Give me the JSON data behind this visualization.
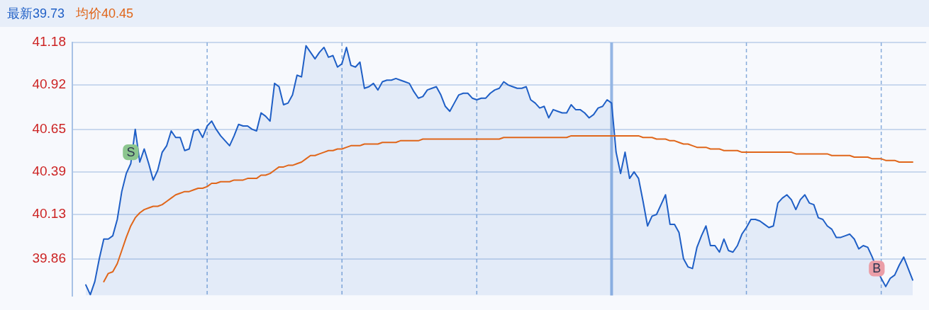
{
  "chart_data": {
    "type": "line",
    "categories": [
      null,
      null,
      null,
      null,
      null,
      null,
      null,
      null,
      null,
      null,
      null,
      null,
      null,
      null,
      null,
      null,
      null,
      null,
      null,
      null,
      null,
      null,
      null,
      null,
      null,
      null,
      null,
      null,
      null,
      null,
      null,
      null,
      null,
      null,
      null,
      null,
      null,
      null,
      null,
      null,
      null,
      null,
      null,
      null,
      null,
      null,
      null,
      null,
      null,
      null,
      null,
      null,
      null,
      null,
      null,
      null,
      null,
      null,
      null,
      null,
      null,
      null,
      null,
      null,
      null,
      null,
      null,
      null,
      null,
      null,
      null,
      null,
      null,
      null,
      null,
      null,
      null,
      null,
      null,
      null,
      null,
      null,
      null,
      null,
      null,
      null,
      null,
      null,
      null,
      null,
      null,
      null,
      null,
      null,
      null,
      null,
      null,
      null,
      null,
      null,
      null,
      null,
      null,
      null,
      null,
      null,
      null,
      null,
      null,
      null,
      null,
      null,
      null,
      null,
      null,
      null,
      null,
      null,
      null,
      null,
      null,
      null,
      null,
      null,
      null,
      null,
      null,
      null,
      null,
      null,
      null,
      null,
      null,
      null,
      null,
      null,
      null,
      null,
      null,
      null,
      null,
      null,
      null,
      null,
      null,
      null,
      null,
      null,
      null,
      null,
      null,
      null,
      null,
      null,
      null,
      null,
      null,
      null,
      null,
      null,
      null,
      null,
      null,
      null,
      null,
      null,
      null,
      null,
      null,
      null,
      null,
      null,
      null,
      null,
      null,
      null,
      null,
      null,
      null,
      null,
      null,
      null,
      null,
      null,
      null,
      null,
      null,
      null,
      null,
      null,
      null
    ],
    "series": [
      {
        "name": "最新39.73",
        "type": "area",
        "color": "#1f5fc6",
        "values": [
          null,
          null,
          null,
          39.7,
          39.64,
          39.72,
          39.86,
          39.98,
          39.98,
          40.0,
          40.1,
          40.27,
          40.38,
          40.44,
          40.65,
          40.45,
          40.53,
          40.44,
          40.34,
          40.4,
          40.51,
          40.55,
          40.64,
          40.6,
          40.6,
          40.52,
          40.53,
          40.64,
          40.65,
          40.6,
          40.67,
          40.7,
          40.65,
          40.61,
          40.58,
          40.55,
          40.61,
          40.68,
          40.67,
          40.67,
          40.65,
          40.64,
          40.75,
          40.73,
          40.7,
          40.93,
          40.91,
          40.8,
          40.81,
          40.86,
          40.98,
          40.97,
          41.16,
          41.12,
          41.08,
          41.12,
          41.15,
          41.09,
          41.1,
          41.03,
          41.05,
          41.15,
          41.04,
          41.03,
          41.06,
          40.9,
          40.91,
          40.93,
          40.89,
          40.94,
          40.95,
          40.95,
          40.96,
          40.95,
          40.94,
          40.93,
          40.88,
          40.84,
          40.85,
          40.89,
          40.9,
          40.91,
          40.86,
          40.79,
          40.76,
          40.81,
          40.86,
          40.87,
          40.87,
          40.84,
          40.83,
          40.84,
          40.84,
          40.87,
          40.89,
          40.9,
          40.94,
          40.92,
          40.91,
          40.9,
          40.9,
          40.91,
          40.83,
          40.81,
          40.78,
          40.79,
          40.72,
          40.77,
          40.76,
          40.75,
          40.75,
          40.8,
          40.77,
          40.77,
          40.75,
          40.72,
          40.74,
          40.78,
          40.79,
          40.83,
          40.81,
          40.51,
          40.38,
          40.51,
          40.35,
          40.39,
          40.35,
          40.21,
          40.06,
          40.12,
          40.13,
          40.19,
          40.25,
          40.07,
          40.07,
          40.02,
          39.86,
          39.81,
          39.8,
          39.93,
          40.0,
          40.06,
          39.94,
          39.94,
          39.9,
          39.98,
          39.91,
          39.9,
          39.94,
          40.01,
          40.05,
          40.1,
          40.1,
          40.09,
          40.07,
          40.05,
          40.06,
          40.2,
          40.23,
          40.25,
          40.22,
          40.16,
          40.22,
          40.25,
          40.2,
          40.19,
          40.11,
          40.1,
          40.06,
          40.04,
          39.99,
          39.99,
          40.0,
          40.01,
          39.98,
          39.92,
          39.94,
          39.93,
          39.87,
          39.8,
          39.74,
          39.69,
          39.74,
          39.76,
          39.82,
          39.87,
          39.8,
          39.73,
          null,
          null,
          null
        ]
      },
      {
        "name": "均价40.45",
        "type": "line",
        "color": "#e0661a",
        "values": [
          null,
          null,
          null,
          null,
          null,
          null,
          null,
          39.72,
          39.77,
          39.78,
          39.83,
          39.91,
          39.99,
          40.06,
          40.11,
          40.14,
          40.16,
          40.17,
          40.18,
          40.18,
          40.19,
          40.21,
          40.23,
          40.25,
          40.26,
          40.27,
          40.27,
          40.28,
          40.29,
          40.29,
          40.3,
          40.32,
          40.32,
          40.33,
          40.33,
          40.33,
          40.34,
          40.34,
          40.34,
          40.35,
          40.35,
          40.35,
          40.37,
          40.37,
          40.38,
          40.4,
          40.42,
          40.42,
          40.43,
          40.43,
          40.44,
          40.45,
          40.47,
          40.49,
          40.49,
          40.5,
          40.51,
          40.52,
          40.52,
          40.53,
          40.53,
          40.54,
          40.55,
          40.55,
          40.55,
          40.56,
          40.56,
          40.56,
          40.56,
          40.57,
          40.57,
          40.57,
          40.57,
          40.58,
          40.58,
          40.58,
          40.58,
          40.58,
          40.59,
          40.59,
          40.59,
          40.59,
          40.59,
          40.59,
          40.59,
          40.59,
          40.59,
          40.59,
          40.59,
          40.59,
          40.59,
          40.59,
          40.59,
          40.59,
          40.59,
          40.59,
          40.6,
          40.6,
          40.6,
          40.6,
          40.6,
          40.6,
          40.6,
          40.6,
          40.6,
          40.6,
          40.6,
          40.6,
          40.6,
          40.6,
          40.6,
          40.61,
          40.61,
          40.61,
          40.61,
          40.61,
          40.61,
          40.61,
          40.61,
          40.61,
          40.61,
          40.61,
          40.61,
          40.61,
          40.61,
          40.61,
          40.61,
          40.6,
          40.6,
          40.6,
          40.59,
          40.59,
          40.59,
          40.58,
          40.58,
          40.57,
          40.56,
          40.56,
          40.55,
          40.54,
          40.54,
          40.54,
          40.53,
          40.53,
          40.53,
          40.52,
          40.52,
          40.52,
          40.52,
          40.51,
          40.51,
          40.51,
          40.51,
          40.51,
          40.51,
          40.51,
          40.51,
          40.51,
          40.51,
          40.51,
          40.51,
          40.5,
          40.5,
          40.5,
          40.5,
          40.5,
          40.5,
          40.5,
          40.5,
          40.49,
          40.49,
          40.49,
          40.49,
          40.49,
          40.48,
          40.48,
          40.48,
          40.48,
          40.47,
          40.47,
          40.47,
          40.46,
          40.46,
          40.46,
          40.45,
          40.45,
          40.45,
          40.45,
          null,
          null,
          null
        ]
      },
      {
        "name": "S",
        "type": "scatter",
        "color": "#8cc68f",
        "marker": "square",
        "values": [
          null,
          null,
          null,
          null,
          null,
          null,
          null,
          null,
          null,
          null,
          null,
          null,
          null,
          40.51,
          null,
          null,
          null,
          null,
          null,
          null,
          null,
          null,
          null,
          null,
          null,
          null,
          null,
          null,
          null,
          null,
          null,
          null,
          null,
          null,
          null,
          null,
          null,
          null,
          null,
          null,
          null,
          null,
          null,
          null,
          null,
          null,
          null,
          null,
          null,
          null,
          null,
          null,
          null,
          null,
          null,
          null,
          null,
          null,
          null,
          null,
          null,
          null,
          null,
          null,
          null,
          null,
          null,
          null,
          null,
          null,
          null,
          null,
          null,
          null,
          null,
          null,
          null,
          null,
          null,
          null,
          null,
          null,
          null,
          null,
          null,
          null,
          null,
          null,
          null,
          null,
          null,
          null,
          null,
          null,
          null,
          null,
          null,
          null,
          null,
          null,
          null,
          null,
          null,
          null,
          null,
          null,
          null,
          null,
          null,
          null,
          null,
          null,
          null,
          null,
          null,
          null,
          null,
          null,
          null,
          null,
          null,
          null,
          null,
          null,
          null,
          null,
          null,
          null,
          null,
          null,
          null,
          null,
          null,
          null,
          null,
          null,
          null,
          null,
          null,
          null,
          null,
          null,
          null,
          null,
          null,
          null,
          null,
          null,
          null,
          null,
          null,
          null,
          null,
          null,
          null,
          null,
          null,
          null,
          null,
          null,
          null,
          null,
          null,
          null,
          null,
          null,
          null,
          null,
          null,
          null,
          null,
          null,
          null,
          null,
          null,
          null,
          null,
          null,
          null,
          null,
          null,
          null,
          null,
          null,
          null,
          null,
          null,
          null,
          null,
          null,
          null
        ]
      },
      {
        "name": "B",
        "type": "scatter",
        "color": "#eb9ea7",
        "marker": "square",
        "values": [
          null,
          null,
          null,
          null,
          null,
          null,
          null,
          null,
          null,
          null,
          null,
          null,
          null,
          null,
          null,
          null,
          null,
          null,
          null,
          null,
          null,
          null,
          null,
          null,
          null,
          null,
          null,
          null,
          null,
          null,
          null,
          null,
          null,
          null,
          null,
          null,
          null,
          null,
          null,
          null,
          null,
          null,
          null,
          null,
          null,
          null,
          null,
          null,
          null,
          null,
          null,
          null,
          null,
          null,
          null,
          null,
          null,
          null,
          null,
          null,
          null,
          null,
          null,
          null,
          null,
          null,
          null,
          null,
          null,
          null,
          null,
          null,
          null,
          null,
          null,
          null,
          null,
          null,
          null,
          null,
          null,
          null,
          null,
          null,
          null,
          null,
          null,
          null,
          null,
          null,
          null,
          null,
          null,
          null,
          null,
          null,
          null,
          null,
          null,
          null,
          null,
          null,
          null,
          null,
          null,
          null,
          null,
          null,
          null,
          null,
          null,
          null,
          null,
          null,
          null,
          null,
          null,
          null,
          null,
          null,
          null,
          null,
          null,
          null,
          null,
          null,
          null,
          null,
          null,
          null,
          null,
          null,
          null,
          null,
          null,
          null,
          null,
          null,
          null,
          null,
          null,
          null,
          null,
          null,
          null,
          null,
          null,
          null,
          null,
          null,
          null,
          null,
          null,
          null,
          null,
          null,
          null,
          null,
          null,
          null,
          null,
          null,
          null,
          null,
          null,
          null,
          null,
          null,
          null,
          null,
          null,
          null,
          null,
          null,
          null,
          null,
          null,
          null,
          null,
          39.8,
          null,
          null,
          null,
          null,
          null,
          null,
          null,
          null,
          null,
          null,
          null
        ]
      }
    ],
    "ylim": [
      39.635,
      41.18
    ],
    "yticks": [
      39.86,
      40.13,
      40.39,
      40.65,
      40.92,
      41.18
    ],
    "grid": true,
    "legend": "top left"
  }
}
